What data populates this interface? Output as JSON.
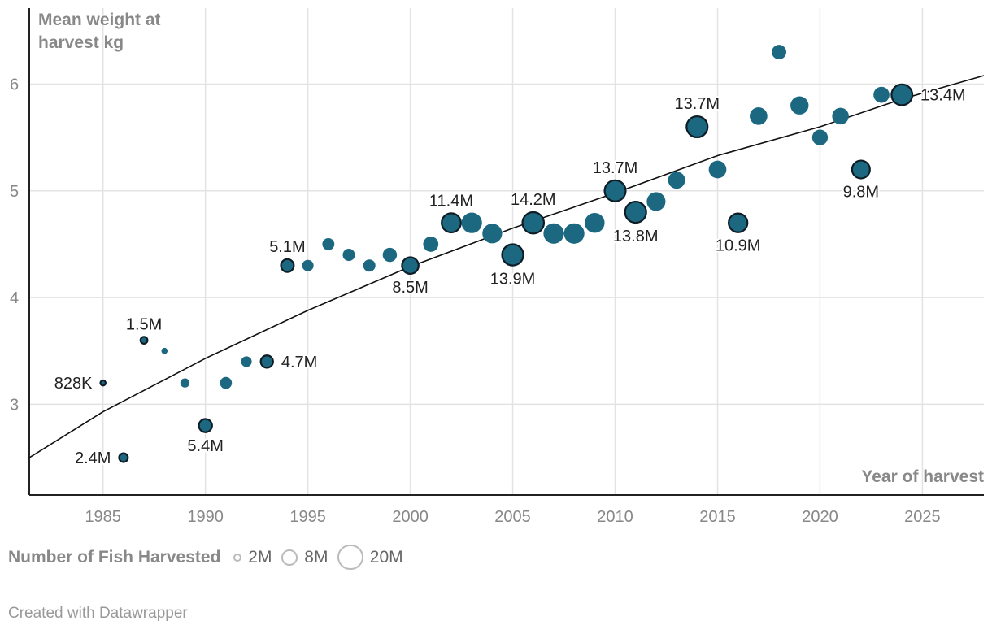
{
  "chart_data": {
    "type": "scatter",
    "ylabel": "Mean weight at harvest kg",
    "xlabel": "Year of harvest",
    "xlim": [
      1981.4,
      2028
    ],
    "ylim": [
      2.15,
      6.75
    ],
    "xticks": [
      1985,
      1990,
      1995,
      2000,
      2005,
      2010,
      2015,
      2020,
      2025
    ],
    "yticks": [
      3,
      4,
      5,
      6
    ],
    "trendline": [
      [
        1981.4,
        2.5
      ],
      [
        1985,
        2.93
      ],
      [
        1990,
        3.43
      ],
      [
        1995,
        3.88
      ],
      [
        2000,
        4.29
      ],
      [
        2005,
        4.65
      ],
      [
        2010,
        4.98
      ],
      [
        2015,
        5.33
      ],
      [
        2020,
        5.6
      ],
      [
        2024,
        5.86
      ],
      [
        2028,
        6.08
      ]
    ],
    "points": [
      {
        "year": 1985,
        "weight": 3.2,
        "fish": 0.828,
        "label": "828K",
        "pos": "left"
      },
      {
        "year": 1986,
        "weight": 2.5,
        "fish": 2.4,
        "label": "2.4M",
        "pos": "left"
      },
      {
        "year": 1987,
        "weight": 3.6,
        "fish": 1.5,
        "label": "1.5M",
        "pos": "top"
      },
      {
        "year": 1988,
        "weight": 3.5,
        "fish": 1.2
      },
      {
        "year": 1989,
        "weight": 3.2,
        "fish": 2.6
      },
      {
        "year": 1990,
        "weight": 2.8,
        "fish": 5.4,
        "label": "5.4M",
        "pos": "bottom"
      },
      {
        "year": 1991,
        "weight": 3.2,
        "fish": 4.4
      },
      {
        "year": 1992,
        "weight": 3.4,
        "fish": 3.5
      },
      {
        "year": 1993,
        "weight": 3.4,
        "fish": 4.7,
        "label": "4.7M",
        "pos": "right"
      },
      {
        "year": 1994,
        "weight": 4.3,
        "fish": 5.1,
        "label": "5.1M",
        "pos": "top"
      },
      {
        "year": 1995,
        "weight": 4.3,
        "fish": 4.0
      },
      {
        "year": 1996,
        "weight": 4.5,
        "fish": 4.5
      },
      {
        "year": 1997,
        "weight": 4.4,
        "fish": 4.6
      },
      {
        "year": 1998,
        "weight": 4.3,
        "fish": 4.6
      },
      {
        "year": 1999,
        "weight": 4.4,
        "fish": 6.2
      },
      {
        "year": 2000,
        "weight": 4.3,
        "fish": 8.5,
        "label": "8.5M",
        "pos": "bottom"
      },
      {
        "year": 2001,
        "weight": 4.5,
        "fish": 7.2
      },
      {
        "year": 2002,
        "weight": 4.7,
        "fish": 11.4,
        "label": "11.4M",
        "pos": "top"
      },
      {
        "year": 2003,
        "weight": 4.7,
        "fish": 13.0
      },
      {
        "year": 2004,
        "weight": 4.6,
        "fish": 12.0
      },
      {
        "year": 2005,
        "weight": 4.4,
        "fish": 13.9,
        "label": "13.9M",
        "pos": "bottom"
      },
      {
        "year": 2006,
        "weight": 4.7,
        "fish": 14.2,
        "label": "14.2M",
        "pos": "top"
      },
      {
        "year": 2007,
        "weight": 4.6,
        "fish": 12.9
      },
      {
        "year": 2008,
        "weight": 4.6,
        "fish": 12.9
      },
      {
        "year": 2009,
        "weight": 4.7,
        "fish": 12.2
      },
      {
        "year": 2010,
        "weight": 5.0,
        "fish": 13.7,
        "label": "13.7M",
        "pos": "top"
      },
      {
        "year": 2011,
        "weight": 4.8,
        "fish": 13.8,
        "label": "13.8M",
        "pos": "bottom"
      },
      {
        "year": 2012,
        "weight": 4.9,
        "fish": 10.9
      },
      {
        "year": 2013,
        "weight": 5.1,
        "fish": 9.0
      },
      {
        "year": 2014,
        "weight": 5.6,
        "fish": 13.7,
        "label": "13.7M",
        "pos": "top"
      },
      {
        "year": 2015,
        "weight": 5.2,
        "fish": 9.6
      },
      {
        "year": 2016,
        "weight": 4.7,
        "fish": 10.9,
        "label": "10.9M",
        "pos": "bottom"
      },
      {
        "year": 2017,
        "weight": 5.7,
        "fish": 9.6
      },
      {
        "year": 2018,
        "weight": 6.3,
        "fish": 6.5
      },
      {
        "year": 2019,
        "weight": 5.8,
        "fish": 10.2
      },
      {
        "year": 2020,
        "weight": 5.5,
        "fish": 7.6
      },
      {
        "year": 2021,
        "weight": 5.7,
        "fish": 8.6
      },
      {
        "year": 2022,
        "weight": 5.2,
        "fish": 9.8,
        "label": "9.8M",
        "pos": "bottom"
      },
      {
        "year": 2023,
        "weight": 5.9,
        "fish": 7.9
      },
      {
        "year": 2024,
        "weight": 5.9,
        "fish": 13.4,
        "label": "13.4M",
        "pos": "right"
      }
    ],
    "colors": {
      "point": "#1b6880",
      "outline": "#0e1c26",
      "grid": "#e3e3e3",
      "axis": "#222222",
      "trend": "#111111"
    }
  },
  "legend": {
    "title": "Number of Fish Harvested",
    "items": [
      {
        "label": "2M",
        "value": 2
      },
      {
        "label": "8M",
        "value": 8
      },
      {
        "label": "20M",
        "value": 20
      }
    ]
  },
  "credit": "Created with Datawrapper"
}
